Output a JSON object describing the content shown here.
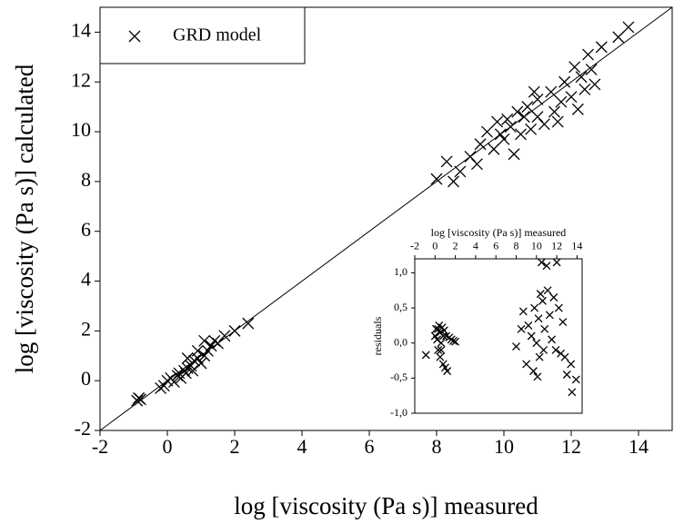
{
  "chart_data": [
    {
      "type": "scatter",
      "x_label": "log [viscosity (Pa s)] measured",
      "y_label": "log [viscosity (Pa s)] calculated",
      "xlim": [
        -2,
        15
      ],
      "ylim": [
        -2,
        15
      ],
      "xticks": [
        -2,
        0,
        2,
        4,
        6,
        8,
        10,
        12,
        14
      ],
      "yticks": [
        -2,
        0,
        2,
        4,
        6,
        8,
        10,
        12,
        14
      ],
      "legend": "top-left",
      "series": [
        {
          "name": "GRD model",
          "color": "#000000",
          "x": [
            -0.9,
            -0.85,
            -0.8,
            -0.2,
            -0.1,
            0,
            0.1,
            0.2,
            0.3,
            0.35,
            0.4,
            0.5,
            0.55,
            0.6,
            0.7,
            0.75,
            0.8,
            0.9,
            1.0,
            1.1,
            1.2,
            1.3,
            1.4,
            1.5,
            1.7,
            2.0,
            2.4,
            1.1,
            0.9,
            0.6,
            8,
            8.3,
            8.5,
            8.7,
            9,
            9.2,
            9.3,
            9.5,
            9.7,
            9.8,
            10,
            10.1,
            10.2,
            10.3,
            10.4,
            10.5,
            10.6,
            10.7,
            10.8,
            11,
            11,
            11.2,
            11.4,
            11.5,
            11.7,
            11.8,
            12,
            12.1,
            12.3,
            12.4,
            12.5,
            12.6,
            12.7,
            12.9,
            13.4,
            13.7,
            11.6,
            10.9,
            9.9,
            12.2
          ],
          "values": [
            -0.8,
            -0.7,
            -0.75,
            -0.3,
            -0.2,
            0,
            0.1,
            -0.05,
            0.2,
            0.3,
            0.1,
            0.4,
            0.3,
            0.5,
            0.6,
            0.4,
            0.8,
            0.9,
            0.7,
            1.0,
            1.2,
            1.4,
            1.6,
            1.5,
            1.8,
            2.0,
            2.3,
            1.6,
            1.2,
            0.9,
            8.1,
            8.8,
            8,
            8.4,
            9,
            8.7,
            9.5,
            10,
            9.3,
            10.4,
            9.7,
            10.5,
            10.2,
            9.1,
            10.8,
            9.9,
            10.6,
            11,
            10.1,
            10.6,
            11.3,
            10.3,
            11.6,
            10.8,
            11.2,
            12,
            11.4,
            12.6,
            12.2,
            11.7,
            13.1,
            12.5,
            11.9,
            13.4,
            13.8,
            14.2,
            10.4,
            11.6,
            9.9,
            10.9
          ]
        }
      ]
    },
    {
      "type": "scatter",
      "x_label": "log [viscosity (Pa s)] measured",
      "y_label": "residuals",
      "xlim": [
        -2,
        14.5
      ],
      "ylim": [
        -1,
        1.2
      ],
      "xticks": [
        -2,
        0,
        2,
        4,
        6,
        8,
        10,
        12,
        14
      ],
      "yticks": [
        {
          "value": -1,
          "label": "-1,0"
        },
        {
          "value": -0.5,
          "label": "-0,5"
        },
        {
          "value": 0,
          "label": "0,0"
        },
        {
          "value": 0.5,
          "label": "0,5"
        },
        {
          "value": 1,
          "label": "1,0"
        }
      ],
      "series": [
        {
          "color": "#000000",
          "x": [
            -0.9,
            0,
            0.1,
            0.2,
            0.3,
            0.4,
            0.5,
            0.5,
            0.6,
            0.7,
            0.8,
            0.9,
            1.0,
            1.1,
            1.2,
            1.4,
            1.6,
            1.8,
            2.0,
            0.3,
            0.6,
            0.8,
            8,
            8.5,
            8.7,
            9,
            9.2,
            9.5,
            9.7,
            9.8,
            10,
            10.1,
            10.2,
            10.3,
            10.4,
            10.5,
            10.6,
            10.7,
            10.8,
            11,
            11.1,
            11.3,
            11.5,
            11.7,
            11.9,
            12,
            12.2,
            12.4,
            12.6,
            12.8,
            13,
            13.4,
            13.5,
            13.9
          ],
          "values": [
            -0.17,
            0.1,
            0.2,
            0.05,
            -0.1,
            0.25,
            0.15,
            -0.2,
            0,
            0.22,
            -0.3,
            0.18,
            -0.35,
            0.1,
            -0.4,
            0.08,
            0.05,
            0.03,
            0.02,
            0.2,
            -0.1,
            0.1,
            -0.05,
            0.2,
            0.45,
            -0.3,
            0.25,
            0.1,
            -0.4,
            0.5,
            0,
            -0.48,
            0.35,
            -0.2,
            0.7,
            1.15,
            0.6,
            -0.1,
            0.2,
            1.1,
            0.75,
            0.4,
            0.05,
            0.65,
            -0.1,
            1.15,
            0.5,
            -0.15,
            0.3,
            -0.2,
            -0.45,
            -0.3,
            -0.7,
            -0.52
          ]
        }
      ]
    }
  ]
}
